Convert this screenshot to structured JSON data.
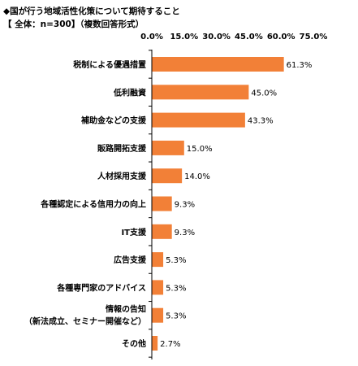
{
  "title": "◆国が行う地域活性化策について期待すること",
  "subtitle": "【 全体：n=300】（複数回答形式）",
  "chart_data": {
    "type": "bar",
    "orientation": "horizontal",
    "xlim": [
      0,
      75
    ],
    "ticks": [
      "0.0%",
      "15.0%",
      "30.0%",
      "45.0%",
      "60.0%",
      "75.0%"
    ],
    "tick_values": [
      0,
      15,
      30,
      45,
      60,
      75
    ],
    "bar_color": "#f28037",
    "grid": false,
    "categories": [
      [
        "税制による優遇措置"
      ],
      [
        "低利融資"
      ],
      [
        "補助金などの支援"
      ],
      [
        "販路開拓支援"
      ],
      [
        "人材採用支援"
      ],
      [
        "各種認定による信用力の向上"
      ],
      [
        "IT支援"
      ],
      [
        "広告支援"
      ],
      [
        "各種専門家のアドバイス"
      ],
      [
        "情報の告知",
        "（新法成立、セミナー開催など）"
      ],
      [
        "その他"
      ]
    ],
    "values": [
      61.3,
      45.0,
      43.3,
      15.0,
      14.0,
      9.3,
      9.3,
      5.3,
      5.3,
      5.3,
      2.7
    ],
    "value_labels": [
      "61.3%",
      "45.0%",
      "43.3%",
      "15.0%",
      "14.0%",
      "9.3%",
      "9.3%",
      "5.3%",
      "5.3%",
      "5.3%",
      "2.7%"
    ]
  }
}
